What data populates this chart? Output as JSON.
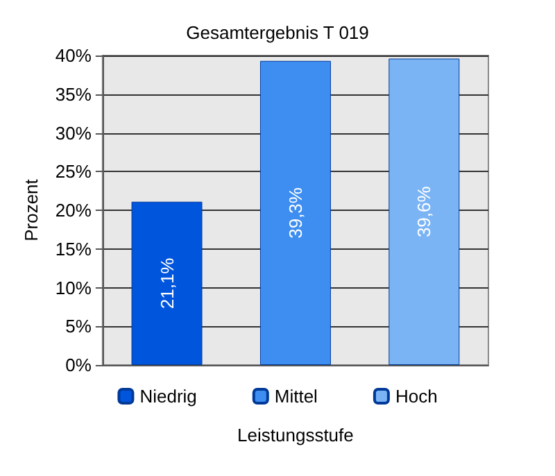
{
  "chart_data": {
    "type": "bar",
    "title": "Gesamtergebnis T 019",
    "xlabel": "Leistungsstufe",
    "ylabel": "Prozent",
    "categories": [
      null,
      null,
      null
    ],
    "series": [
      {
        "name": "Niedrig",
        "color": "#0055dd",
        "values": [
          21.1,
          null,
          null
        ],
        "value_labels": [
          "21,1%",
          null,
          null
        ]
      },
      {
        "name": "Mittel",
        "color": "#3d8ef0",
        "values": [
          null,
          39.3,
          null
        ],
        "value_labels": [
          null,
          "39,3%",
          null
        ]
      },
      {
        "name": "Hoch",
        "color": "#7ab4f5",
        "values": [
          null,
          null,
          39.6
        ],
        "value_labels": [
          null,
          null,
          "39,6%"
        ]
      }
    ],
    "ylim": [
      0,
      40
    ],
    "yticks": [
      {
        "value": 0,
        "label": "0%"
      },
      {
        "value": 5,
        "label": "5%"
      },
      {
        "value": 10,
        "label": "10%"
      },
      {
        "value": 15,
        "label": "15%"
      },
      {
        "value": 20,
        "label": "20%"
      },
      {
        "value": 25,
        "label": "25%"
      },
      {
        "value": 30,
        "label": "30%"
      },
      {
        "value": 35,
        "label": "35%"
      },
      {
        "value": 40,
        "label": "40%"
      }
    ],
    "grid": "y",
    "legend": "bottom"
  }
}
